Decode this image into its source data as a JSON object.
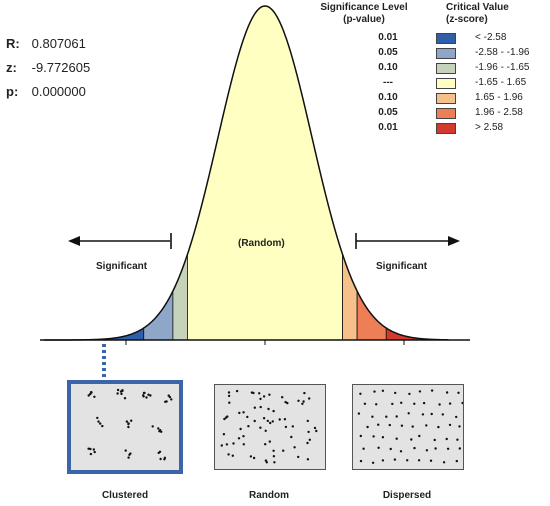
{
  "stats": [
    {
      "key": "R:",
      "value": "0.807061"
    },
    {
      "key": "z:",
      "value": "-9.772605"
    },
    {
      "key": "p:",
      "value": "0.000000"
    }
  ],
  "legend": {
    "col1_header": "Significance Level\n(p-value)",
    "col2_header": "Critical Value\n(z-score)",
    "rows": [
      {
        "p": "0.01",
        "z": "< -2.58",
        "color": "#2f5fa8"
      },
      {
        "p": "0.05",
        "z": "-2.58 - -1.96",
        "color": "#8ea6c8"
      },
      {
        "p": "0.10",
        "z": "-1.96 - -1.65",
        "color": "#c6d2b9"
      },
      {
        "p": "---",
        "z": "-1.65 - 1.65",
        "color": "#ffffc2"
      },
      {
        "p": "0.10",
        "z": "1.65 - 1.96",
        "color": "#f6c08a"
      },
      {
        "p": "0.05",
        "z": "1.96 - 2.58",
        "color": "#ee7e56"
      },
      {
        "p": "0.01",
        "z": "> 2.58",
        "color": "#d23a2e"
      }
    ]
  },
  "curve_labels": {
    "center": "(Random)",
    "left": "Significant",
    "right": "Significant"
  },
  "patterns": [
    {
      "label": "Clustered",
      "selected": true
    },
    {
      "label": "Random",
      "selected": false
    },
    {
      "label": "Dispersed",
      "selected": false
    }
  ]
}
